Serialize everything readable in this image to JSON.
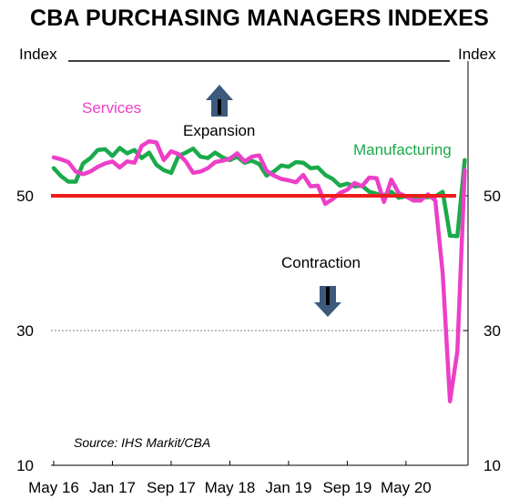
{
  "colors": {
    "services": "#ec3fc8",
    "manufacturing": "#1aaa4a",
    "threshold": "#ee1c1c",
    "arrow": "#3d5a7d"
  },
  "chart_data": {
    "type": "line",
    "title": "CBA PURCHASING MANAGERS INDEXES",
    "ylabel_left": "Index",
    "ylabel_right": "Index",
    "ylim": [
      10,
      70
    ],
    "y_ticks": [
      10,
      30,
      50
    ],
    "x_ticks": [
      "May 16",
      "Jan 17",
      "Sep 17",
      "May 18",
      "Jan 19",
      "Sep 19",
      "May 20"
    ],
    "x_start": "2016-05",
    "grid": "dotted at 30",
    "threshold": 50,
    "series": [
      {
        "name": "Services",
        "values": [
          55.7,
          55.4,
          55.0,
          53.6,
          53.2,
          53.6,
          54.3,
          54.8,
          55.1,
          54.2,
          55.1,
          54.9,
          57.4,
          58.1,
          57.9,
          55.3,
          56.6,
          56.2,
          55.1,
          53.4,
          53.6,
          54.1,
          55.0,
          55.2,
          55.5,
          56.3,
          55.1,
          55.8,
          56.0,
          53.7,
          53.0,
          52.5,
          52.3,
          52.0,
          53.1,
          51.4,
          51.5,
          48.8,
          49.5,
          50.4,
          50.9,
          51.9,
          51.4,
          52.7,
          52.6,
          49.1,
          52.4,
          50.4,
          49.9,
          49.3,
          49.3,
          50.2,
          49.3,
          38.5,
          19.5,
          26.9,
          53.8
        ]
      },
      {
        "name": "Manufacturing",
        "values": [
          54.1,
          52.9,
          52.1,
          52.1,
          54.8,
          55.6,
          56.8,
          56.9,
          55.9,
          57.1,
          56.3,
          56.8,
          55.6,
          56.4,
          54.6,
          53.8,
          53.4,
          55.9,
          56.4,
          57.0,
          55.8,
          55.6,
          56.4,
          55.7,
          55.3,
          55.8,
          54.9,
          55.2,
          54.7,
          53.0,
          53.6,
          54.5,
          54.3,
          55.0,
          54.9,
          54.1,
          54.2,
          53.1,
          52.5,
          51.5,
          51.8,
          51.4,
          51.5,
          50.6,
          50.3,
          50.1,
          50.6,
          49.7,
          49.9,
          49.4,
          49.7,
          49.8,
          49.9,
          50.6,
          44.1,
          44.0,
          55.3
        ]
      }
    ]
  },
  "annotations": {
    "services_label": "Services",
    "manufacturing_label": "Manufacturing",
    "expansion_label": "Expansion",
    "contraction_label": "Contraction",
    "source": "Source: IHS Markit/CBA"
  }
}
